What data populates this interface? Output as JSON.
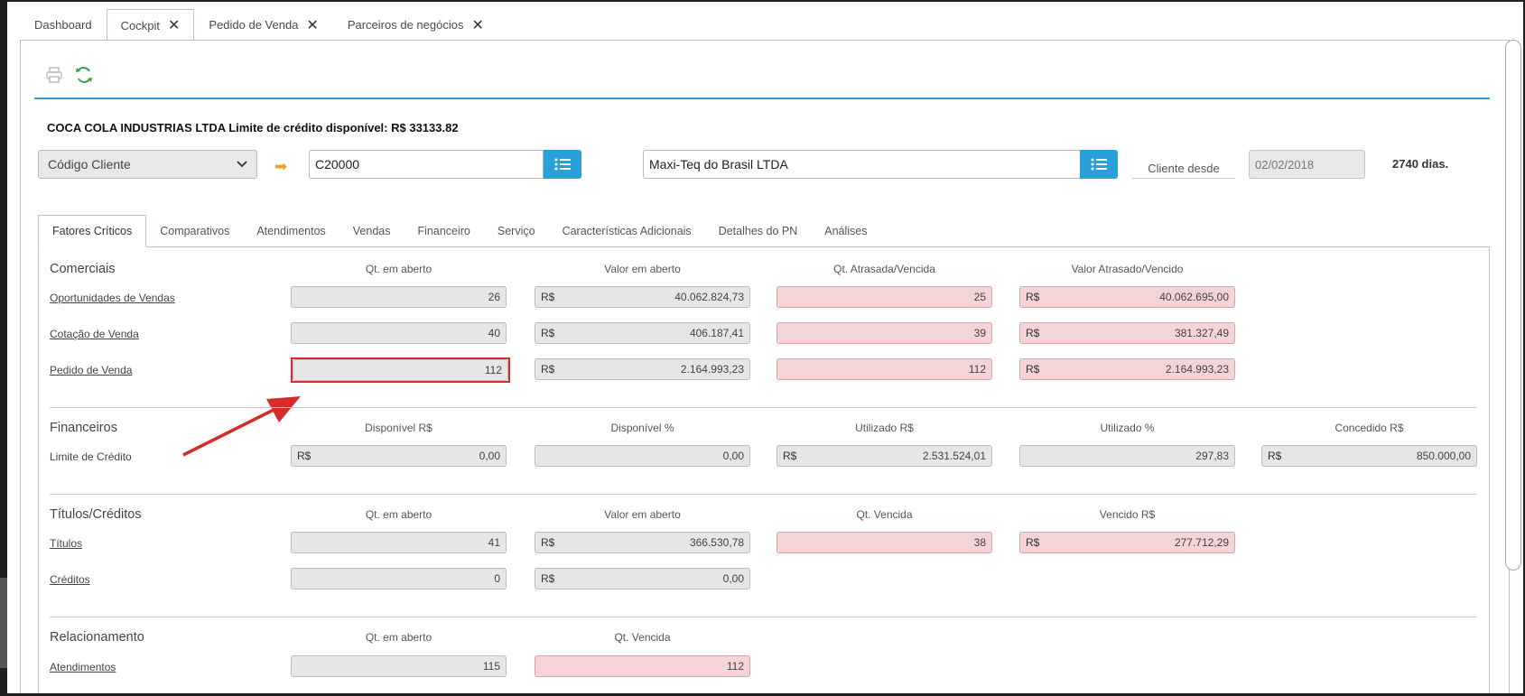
{
  "tabs": [
    {
      "label": "Dashboard",
      "closable": false
    },
    {
      "label": "Cockpit",
      "closable": true,
      "active": true
    },
    {
      "label": "Pedido de Venda",
      "closable": true
    },
    {
      "label": "Parceiros de negócios",
      "closable": true
    }
  ],
  "header": {
    "client_title": "COCA COLA INDUSTRIAS LTDA Limite de crédito disponível: R$ 33133.82",
    "search_type": "Código Cliente",
    "client_code": "C20000",
    "client_name": "Maxi-Teq do Brasil LTDA",
    "since_label": "Cliente desde",
    "since_date": "02/02/2018",
    "days": "2740 dias."
  },
  "sub_tabs": [
    "Fatores Críticos",
    "Comparativos",
    "Atendimentos",
    "Vendas",
    "Financeiro",
    "Serviço",
    "Características Adicionais",
    "Detalhes do PN",
    "Análises"
  ],
  "currency": "R$",
  "comerciais": {
    "title": "Comerciais",
    "headers": [
      "Qt. em aberto",
      "Valor em aberto",
      "Qt. Atrasada/Vencida",
      "Valor Atrasado/Vencido"
    ],
    "rows": [
      {
        "label": "Oportunidades de Vendas",
        "qt": "26",
        "valor": "40.062.824,73",
        "qt_atraso": "25",
        "valor_atraso": "40.062.695,00"
      },
      {
        "label": "Cotação de Venda",
        "qt": "40",
        "valor": "406.187,41",
        "qt_atraso": "39",
        "valor_atraso": "381.327,49"
      },
      {
        "label": "Pedido de Venda",
        "qt": "112",
        "valor": "2.164.993,23",
        "qt_atraso": "112",
        "valor_atraso": "2.164.993,23"
      }
    ]
  },
  "financeiros": {
    "title": "Financeiros",
    "headers": [
      "Disponível R$",
      "Disponível %",
      "Utilizado R$",
      "Utilizado %",
      "Concedido R$"
    ],
    "row": {
      "label": "Limite de Crédito",
      "disp_rs": "0,00",
      "disp_pct": "0,00",
      "util_rs": "2.531.524,01",
      "util_pct": "297,83",
      "conc_rs": "850.000,00"
    }
  },
  "titulos": {
    "title": "Títulos/Créditos",
    "headers": [
      "Qt. em aberto",
      "Valor em aberto",
      "Qt. Vencida",
      "Vencido R$"
    ],
    "rows": [
      {
        "label": "Títulos",
        "qt": "41",
        "valor": "366.530,78",
        "qt_venc": "38",
        "venc": "277.712,29"
      },
      {
        "label": "Créditos",
        "qt": "0",
        "valor": "0,00"
      }
    ]
  },
  "relacionamento": {
    "title": "Relacionamento",
    "headers": [
      "Qt. em aberto",
      "Qt. Vencida"
    ],
    "row": {
      "label": "Atendimentos",
      "qt": "115",
      "qt_venc": "112"
    }
  },
  "colors": {
    "accent": "#2aa0d8",
    "overdue_bg": "#f5d4d7",
    "highlight": "#d42b2b",
    "refresh": "#37a04a",
    "arrow": "#f0a020"
  },
  "icons": [
    "print-icon",
    "refresh-icon",
    "close-icon",
    "list-icon",
    "chevron-down-icon",
    "arrow-right-icon"
  ]
}
